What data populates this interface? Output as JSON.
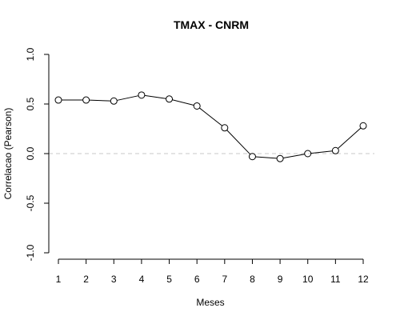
{
  "chart_data": {
    "type": "line",
    "title": "TMAX - CNRM",
    "xlabel": "Meses",
    "ylabel": "Correlacao (Pearson)",
    "x": [
      1,
      2,
      3,
      4,
      5,
      6,
      7,
      8,
      9,
      10,
      11,
      12
    ],
    "xticks": [
      "1",
      "2",
      "3",
      "4",
      "5",
      "6",
      "7",
      "8",
      "9",
      "10",
      "11",
      "12"
    ],
    "yticks": [
      "-1.0",
      "-0.5",
      "0.0",
      "0.5",
      "1.0"
    ],
    "ylim": [
      -1.0,
      1.0
    ],
    "reference_line_y": 0.0,
    "series": [
      {
        "values": [
          0.54,
          0.54,
          0.53,
          0.59,
          0.55,
          0.48,
          0.26,
          -0.03,
          -0.05,
          0.0,
          0.03,
          0.28
        ]
      }
    ],
    "colors": {
      "line": "#000000",
      "reference": "#c8c8c8"
    },
    "marker": "open-circle",
    "grid": false
  }
}
